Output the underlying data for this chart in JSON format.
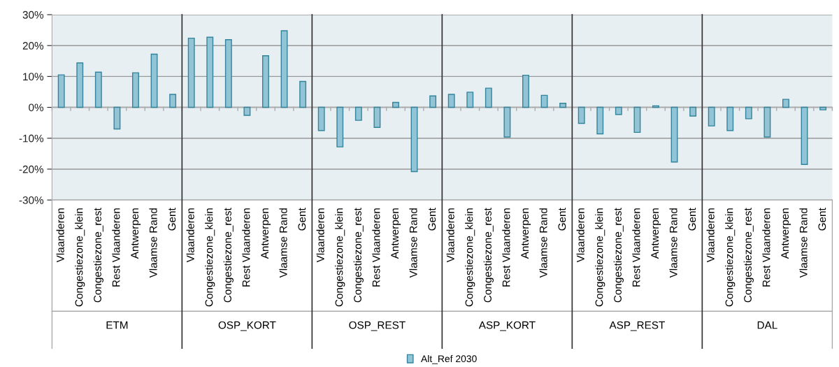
{
  "chart_data": {
    "type": "bar",
    "categories": [
      "Vlaanderen",
      "Congestiezone_klein",
      "Congestiezone_rest",
      "Rest Vlaanderen",
      "Antwerpen",
      "Vlaamse Rand",
      "Gent",
      "Vlaanderen",
      "Congestiezone_klein",
      "Congestiezone_rest",
      "Rest Vlaanderen",
      "Antwerpen",
      "Vlaamse Rand",
      "Gent",
      "Vlaanderen",
      "Congestiezone_klein",
      "Congestiezone_rest",
      "Rest Vlaanderen",
      "Antwerpen",
      "Vlaamse Rand",
      "Gent",
      "Vlaanderen",
      "Congestiezone_klein",
      "Congestiezone_rest",
      "Rest Vlaanderen",
      "Antwerpen",
      "Vlaamse Rand",
      "Gent",
      "Vlaanderen",
      "Congestiezone_klein",
      "Congestiezone_rest",
      "Rest Vlaanderen",
      "Antwerpen",
      "Vlaamse Rand",
      "Gent",
      "Vlaanderen",
      "Congestiezone_klein",
      "Congestiezone_rest",
      "Rest Vlaanderen",
      "Antwerpen",
      "Vlaamse Rand",
      "Gent"
    ],
    "series": [
      {
        "name": "Alt_Ref 2030",
        "color": "#92c4d6",
        "values": [
          10.5,
          14.4,
          11.4,
          -7.0,
          11.2,
          17.2,
          4.2,
          22.4,
          22.7,
          21.9,
          -2.6,
          16.7,
          24.8,
          8.4,
          -7.5,
          -12.8,
          -4.2,
          -6.5,
          1.6,
          -20.8,
          3.7,
          4.2,
          4.9,
          6.2,
          -9.6,
          10.4,
          3.9,
          1.3,
          -5.2,
          -8.6,
          -2.3,
          -8.1,
          0.5,
          -17.7,
          -2.8,
          -6.0,
          -7.5,
          -3.7,
          -9.6,
          2.6,
          -18.5,
          -0.8
        ]
      }
    ],
    "annotations": [
      "ETM",
      "OSP_KORT",
      "OSP_REST",
      "ASP_KORT",
      "ASP_REST",
      "DAL"
    ],
    "ylim": [
      -30,
      30
    ],
    "yticks": [
      {
        "value": -30,
        "label": "-30%"
      },
      {
        "value": -20,
        "label": "-20%"
      },
      {
        "value": -10,
        "label": "-10%"
      },
      {
        "value": 0,
        "label": "0%"
      },
      {
        "value": 10,
        "label": "10%"
      },
      {
        "value": 20,
        "label": "20%"
      },
      {
        "value": 30,
        "label": "30%"
      }
    ],
    "grid": "y",
    "legend": "bottom"
  }
}
